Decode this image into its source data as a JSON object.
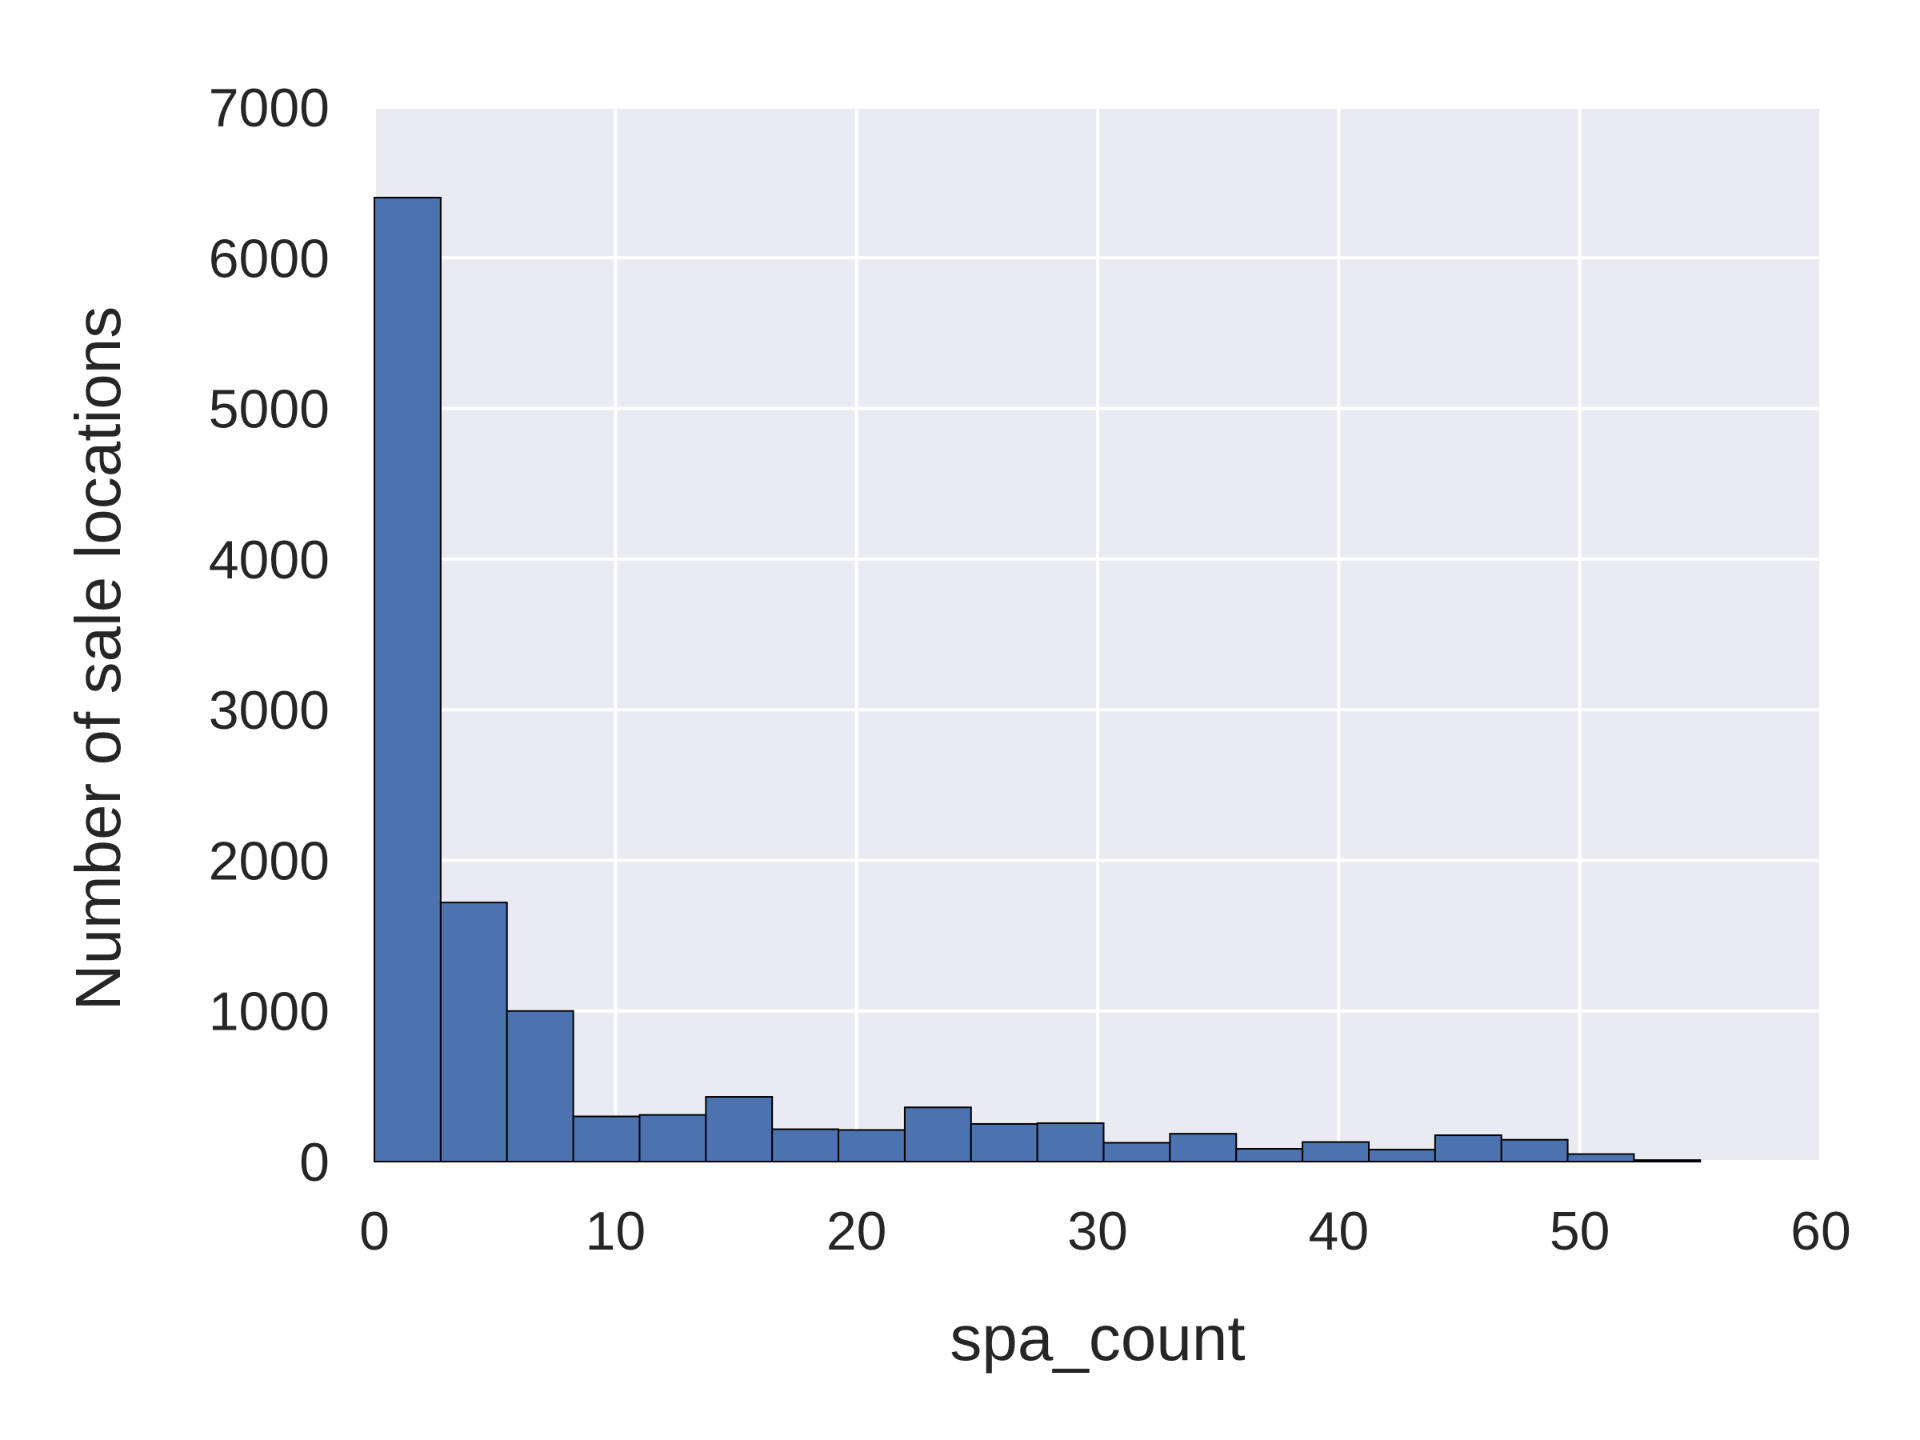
{
  "chart_data": {
    "type": "bar",
    "subtype": "histogram",
    "title": "",
    "xlabel": "spa_count",
    "ylabel": "Number of sale locations",
    "xlim": [
      0,
      60
    ],
    "ylim": [
      0,
      7000
    ],
    "xticks": [
      0,
      10,
      20,
      30,
      40,
      50,
      60
    ],
    "yticks": [
      0,
      1000,
      2000,
      3000,
      4000,
      5000,
      6000,
      7000
    ],
    "grid": true,
    "legend": "none",
    "colors": {
      "bar_fill": "#4c72b0",
      "bar_edge": "#000000",
      "plot_background": "#eaeaf2",
      "grid": "#ffffff",
      "text": "#262626"
    },
    "bin_edges": [
      0,
      2.75,
      5.5,
      8.25,
      11,
      13.75,
      16.5,
      19.25,
      22,
      24.75,
      27.5,
      30.25,
      33,
      35.75,
      38.5,
      41.25,
      44,
      46.75,
      49.5,
      52.25,
      55
    ],
    "values": [
      6400,
      1720,
      1000,
      300,
      310,
      430,
      215,
      210,
      360,
      250,
      255,
      125,
      185,
      85,
      130,
      80,
      175,
      145,
      50,
      10
    ]
  }
}
